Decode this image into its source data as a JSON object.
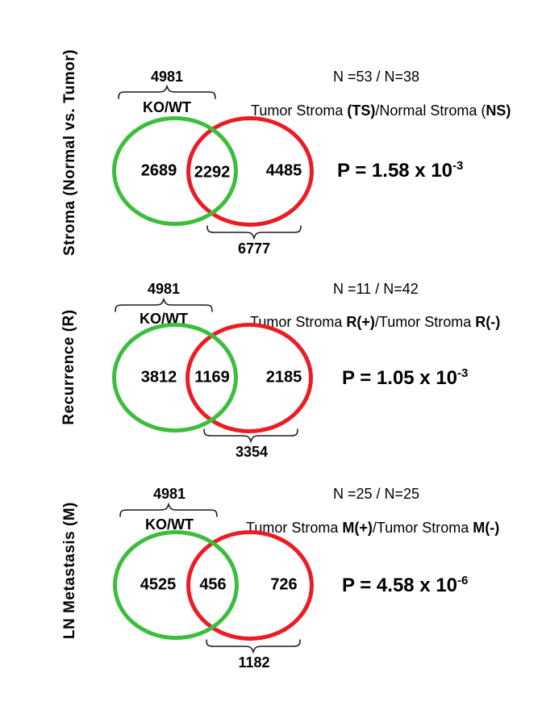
{
  "figure": {
    "description": "Three Venn diagrams comparing KO/WT gene set against tumor stroma comparisons",
    "colors": {
      "green_circle": "#3cbe3c",
      "red_circle": "#ec1c24",
      "text": "#000000"
    }
  },
  "panels": [
    {
      "side_label": "Stroma (Normal vs. Tumor)",
      "top_total": "4981",
      "left_set_label": "KO/WT",
      "right_set_label_segments": [
        {
          "t": "Tumor Stroma ",
          "b": false
        },
        {
          "t": "(TS)",
          "b": true
        },
        {
          "t": "/Normal Stroma (",
          "b": false
        },
        {
          "t": "NS)",
          "b": true
        }
      ],
      "n_label": "N =53 / N=38",
      "left_only": "2689",
      "overlap": "2292",
      "right_only": "4485",
      "p_base": "P = 1.58 x 10",
      "p_exponent": "-3",
      "bottom_total": "6777"
    },
    {
      "side_label": "Recurrence (R)",
      "top_total": "4981",
      "left_set_label": "KO/WT",
      "right_set_label_segments": [
        {
          "t": "Tumor Stroma ",
          "b": false
        },
        {
          "t": "R(+)",
          "b": true
        },
        {
          "t": "/Tumor Stroma ",
          "b": false
        },
        {
          "t": "R(-)",
          "b": true
        }
      ],
      "n_label": "N =11 / N=42",
      "left_only": "3812",
      "overlap": "1169",
      "right_only": "2185",
      "p_base": "P = 1.05 x 10",
      "p_exponent": "-3",
      "bottom_total": "3354"
    },
    {
      "side_label": "LN Metastasis (M)",
      "top_total": "4981",
      "left_set_label": "KO/WT",
      "right_set_label_segments": [
        {
          "t": "Tumor Stroma ",
          "b": false
        },
        {
          "t": "M(+)",
          "b": true
        },
        {
          "t": "/Tumor Stroma ",
          "b": false
        },
        {
          "t": "M(-)",
          "b": true
        }
      ],
      "n_label": "N =25 / N=25",
      "left_only": "4525",
      "overlap": "456",
      "right_only": "726",
      "p_base": "P = 4.58 x 10",
      "p_exponent": "-6",
      "bottom_total": "1182"
    }
  ]
}
